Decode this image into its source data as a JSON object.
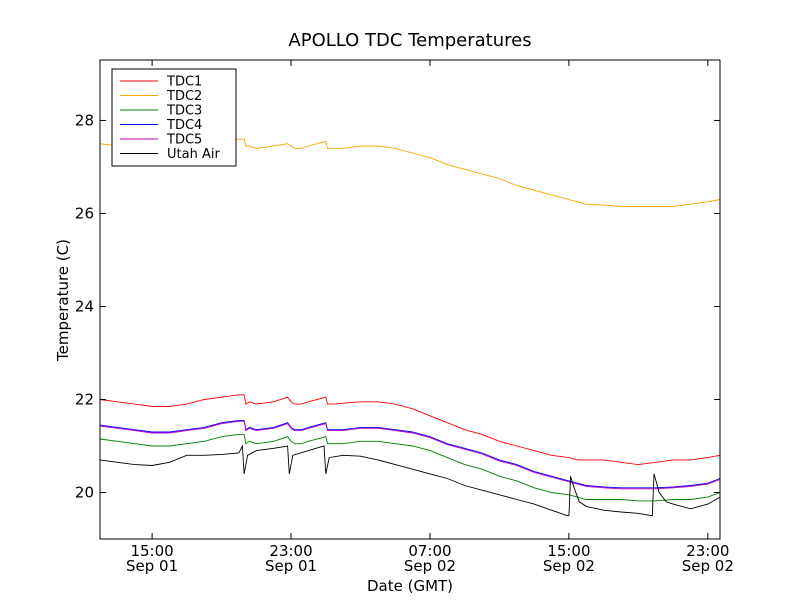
{
  "chart_data": {
    "type": "line",
    "title": "APOLLO TDC Temperatures",
    "xlabel": "Date (GMT)",
    "ylabel": "Temperature (C)",
    "xlim": [
      12,
      47.7
    ],
    "ylim": [
      19.0,
      29.3
    ],
    "x_units": "hours since 2011-09-01 00:00 GMT",
    "legend_position": "upper-left",
    "x_ticks": [
      {
        "value": 15,
        "time": "15:00",
        "date": "Sep 01"
      },
      {
        "value": 23,
        "time": "23:00",
        "date": "Sep 01"
      },
      {
        "value": 31,
        "time": "07:00",
        "date": "Sep 02"
      },
      {
        "value": 39,
        "time": "15:00",
        "date": "Sep 02"
      },
      {
        "value": 47,
        "time": "23:00",
        "date": "Sep 02"
      }
    ],
    "y_ticks": [
      {
        "value": 20,
        "label": "20"
      },
      {
        "value": 22,
        "label": "22"
      },
      {
        "value": 24,
        "label": "24"
      },
      {
        "value": 26,
        "label": "26"
      },
      {
        "value": 28,
        "label": "28"
      }
    ],
    "series": [
      {
        "name": "TDC1",
        "color": "#ff0000",
        "points": [
          [
            12,
            22.0
          ],
          [
            13,
            21.95
          ],
          [
            14,
            21.9
          ],
          [
            15,
            21.85
          ],
          [
            16,
            21.85
          ],
          [
            17,
            21.9
          ],
          [
            18,
            22.0
          ],
          [
            19,
            22.05
          ],
          [
            20,
            22.1
          ],
          [
            20.3,
            22.1
          ],
          [
            20.4,
            21.9
          ],
          [
            20.6,
            21.95
          ],
          [
            21,
            21.9
          ],
          [
            22,
            21.95
          ],
          [
            22.8,
            22.05
          ],
          [
            23,
            21.95
          ],
          [
            23.2,
            21.9
          ],
          [
            23.6,
            21.9
          ],
          [
            24,
            21.95
          ],
          [
            25,
            22.05
          ],
          [
            25.1,
            21.9
          ],
          [
            25.5,
            21.9
          ],
          [
            26,
            21.92
          ],
          [
            27,
            21.95
          ],
          [
            28,
            21.95
          ],
          [
            29,
            21.9
          ],
          [
            30,
            21.8
          ],
          [
            31,
            21.65
          ],
          [
            32,
            21.5
          ],
          [
            33,
            21.35
          ],
          [
            34,
            21.25
          ],
          [
            35,
            21.1
          ],
          [
            36,
            21.0
          ],
          [
            37,
            20.9
          ],
          [
            38,
            20.8
          ],
          [
            39,
            20.75
          ],
          [
            39.5,
            20.7
          ],
          [
            40,
            20.7
          ],
          [
            41,
            20.7
          ],
          [
            42,
            20.65
          ],
          [
            43,
            20.6
          ],
          [
            44,
            20.65
          ],
          [
            45,
            20.7
          ],
          [
            46,
            20.7
          ],
          [
            47,
            20.75
          ],
          [
            47.7,
            20.8
          ]
        ]
      },
      {
        "name": "TDC2",
        "color": "#ffa500",
        "points": [
          [
            12,
            27.5
          ],
          [
            13,
            27.45
          ],
          [
            14,
            27.4
          ],
          [
            15,
            27.35
          ],
          [
            16,
            27.35
          ],
          [
            17,
            27.4
          ],
          [
            18,
            27.45
          ],
          [
            19,
            27.55
          ],
          [
            20,
            27.6
          ],
          [
            20.3,
            27.6
          ],
          [
            20.4,
            27.45
          ],
          [
            20.6,
            27.45
          ],
          [
            21,
            27.4
          ],
          [
            22,
            27.45
          ],
          [
            22.8,
            27.5
          ],
          [
            23,
            27.45
          ],
          [
            23.2,
            27.4
          ],
          [
            23.6,
            27.4
          ],
          [
            24,
            27.45
          ],
          [
            25,
            27.55
          ],
          [
            25.1,
            27.4
          ],
          [
            25.5,
            27.4
          ],
          [
            26,
            27.4
          ],
          [
            27,
            27.45
          ],
          [
            28,
            27.45
          ],
          [
            29,
            27.4
          ],
          [
            30,
            27.3
          ],
          [
            31,
            27.2
          ],
          [
            32,
            27.05
          ],
          [
            33,
            26.95
          ],
          [
            34,
            26.85
          ],
          [
            35,
            26.75
          ],
          [
            36,
            26.6
          ],
          [
            37,
            26.5
          ],
          [
            38,
            26.4
          ],
          [
            39,
            26.3
          ],
          [
            39.5,
            26.25
          ],
          [
            40,
            26.2
          ],
          [
            41,
            26.18
          ],
          [
            42,
            26.15
          ],
          [
            43,
            26.15
          ],
          [
            44,
            26.15
          ],
          [
            45,
            26.15
          ],
          [
            46,
            26.2
          ],
          [
            47,
            26.25
          ],
          [
            47.7,
            26.3
          ]
        ]
      },
      {
        "name": "TDC3",
        "color": "#008000",
        "points": [
          [
            12,
            21.15
          ],
          [
            13,
            21.1
          ],
          [
            14,
            21.05
          ],
          [
            15,
            21.0
          ],
          [
            16,
            21.0
          ],
          [
            17,
            21.05
          ],
          [
            18,
            21.1
          ],
          [
            19,
            21.2
          ],
          [
            20,
            21.25
          ],
          [
            20.3,
            21.25
          ],
          [
            20.4,
            21.05
          ],
          [
            20.6,
            21.1
          ],
          [
            21,
            21.05
          ],
          [
            22,
            21.1
          ],
          [
            22.8,
            21.2
          ],
          [
            23,
            21.1
          ],
          [
            23.2,
            21.05
          ],
          [
            23.6,
            21.05
          ],
          [
            24,
            21.1
          ],
          [
            25,
            21.2
          ],
          [
            25.1,
            21.05
          ],
          [
            25.5,
            21.05
          ],
          [
            26,
            21.05
          ],
          [
            27,
            21.1
          ],
          [
            28,
            21.1
          ],
          [
            29,
            21.05
          ],
          [
            30,
            21.0
          ],
          [
            31,
            20.9
          ],
          [
            32,
            20.75
          ],
          [
            33,
            20.6
          ],
          [
            34,
            20.5
          ],
          [
            35,
            20.35
          ],
          [
            36,
            20.25
          ],
          [
            37,
            20.1
          ],
          [
            38,
            20.0
          ],
          [
            39,
            19.95
          ],
          [
            39.5,
            19.9
          ],
          [
            40,
            19.85
          ],
          [
            41,
            19.85
          ],
          [
            42,
            19.85
          ],
          [
            43,
            19.82
          ],
          [
            44,
            19.82
          ],
          [
            45,
            19.85
          ],
          [
            46,
            19.85
          ],
          [
            47,
            19.9
          ],
          [
            47.7,
            20.0
          ]
        ]
      },
      {
        "name": "TDC4",
        "color": "#0000ff",
        "points": [
          [
            12,
            21.45
          ],
          [
            13,
            21.4
          ],
          [
            14,
            21.35
          ],
          [
            15,
            21.3
          ],
          [
            16,
            21.3
          ],
          [
            17,
            21.35
          ],
          [
            18,
            21.4
          ],
          [
            19,
            21.5
          ],
          [
            20,
            21.55
          ],
          [
            20.3,
            21.55
          ],
          [
            20.4,
            21.35
          ],
          [
            20.6,
            21.4
          ],
          [
            21,
            21.35
          ],
          [
            22,
            21.4
          ],
          [
            22.8,
            21.5
          ],
          [
            23,
            21.4
          ],
          [
            23.2,
            21.35
          ],
          [
            23.6,
            21.35
          ],
          [
            24,
            21.4
          ],
          [
            25,
            21.5
          ],
          [
            25.1,
            21.35
          ],
          [
            25.5,
            21.35
          ],
          [
            26,
            21.35
          ],
          [
            27,
            21.4
          ],
          [
            28,
            21.4
          ],
          [
            29,
            21.35
          ],
          [
            30,
            21.3
          ],
          [
            31,
            21.2
          ],
          [
            32,
            21.05
          ],
          [
            33,
            20.95
          ],
          [
            34,
            20.85
          ],
          [
            35,
            20.7
          ],
          [
            36,
            20.6
          ],
          [
            37,
            20.45
          ],
          [
            38,
            20.35
          ],
          [
            39,
            20.25
          ],
          [
            39.5,
            20.2
          ],
          [
            40,
            20.15
          ],
          [
            41,
            20.12
          ],
          [
            42,
            20.1
          ],
          [
            43,
            20.1
          ],
          [
            44,
            20.1
          ],
          [
            45,
            20.12
          ],
          [
            46,
            20.15
          ],
          [
            47,
            20.2
          ],
          [
            47.7,
            20.3
          ]
        ]
      },
      {
        "name": "TDC5",
        "color": "#bf00bf",
        "points": [
          [
            12,
            21.43
          ],
          [
            13,
            21.38
          ],
          [
            14,
            21.33
          ],
          [
            15,
            21.28
          ],
          [
            16,
            21.28
          ],
          [
            17,
            21.33
          ],
          [
            18,
            21.38
          ],
          [
            19,
            21.48
          ],
          [
            20,
            21.53
          ],
          [
            20.3,
            21.53
          ],
          [
            20.4,
            21.33
          ],
          [
            20.6,
            21.38
          ],
          [
            21,
            21.33
          ],
          [
            22,
            21.38
          ],
          [
            22.8,
            21.48
          ],
          [
            23,
            21.38
          ],
          [
            23.2,
            21.33
          ],
          [
            23.6,
            21.33
          ],
          [
            24,
            21.38
          ],
          [
            25,
            21.48
          ],
          [
            25.1,
            21.33
          ],
          [
            25.5,
            21.33
          ],
          [
            26,
            21.33
          ],
          [
            27,
            21.38
          ],
          [
            28,
            21.38
          ],
          [
            29,
            21.33
          ],
          [
            30,
            21.28
          ],
          [
            31,
            21.18
          ],
          [
            32,
            21.03
          ],
          [
            33,
            20.93
          ],
          [
            34,
            20.83
          ],
          [
            35,
            20.68
          ],
          [
            36,
            20.58
          ],
          [
            37,
            20.43
          ],
          [
            38,
            20.33
          ],
          [
            39,
            20.23
          ],
          [
            39.5,
            20.18
          ],
          [
            40,
            20.13
          ],
          [
            41,
            20.1
          ],
          [
            42,
            20.08
          ],
          [
            43,
            20.08
          ],
          [
            44,
            20.08
          ],
          [
            45,
            20.1
          ],
          [
            46,
            20.13
          ],
          [
            47,
            20.18
          ],
          [
            47.7,
            20.28
          ]
        ]
      },
      {
        "name": "Utah Air",
        "color": "#000000",
        "points": [
          [
            12,
            20.7
          ],
          [
            13,
            20.65
          ],
          [
            14,
            20.6
          ],
          [
            15,
            20.58
          ],
          [
            16,
            20.65
          ],
          [
            17,
            20.8
          ],
          [
            18,
            20.8
          ],
          [
            19,
            20.82
          ],
          [
            20,
            20.85
          ],
          [
            20.2,
            21.0
          ],
          [
            20.3,
            20.4
          ],
          [
            20.5,
            20.8
          ],
          [
            21,
            20.9
          ],
          [
            22,
            20.95
          ],
          [
            22.8,
            21.0
          ],
          [
            22.9,
            20.4
          ],
          [
            23.1,
            20.8
          ],
          [
            24,
            20.9
          ],
          [
            24.9,
            21.0
          ],
          [
            25.0,
            20.4
          ],
          [
            25.2,
            20.75
          ],
          [
            26,
            20.8
          ],
          [
            27,
            20.78
          ],
          [
            28,
            20.7
          ],
          [
            29,
            20.6
          ],
          [
            30,
            20.5
          ],
          [
            31,
            20.4
          ],
          [
            32,
            20.3
          ],
          [
            33,
            20.15
          ],
          [
            34,
            20.05
          ],
          [
            35,
            19.95
          ],
          [
            36,
            19.85
          ],
          [
            37,
            19.75
          ],
          [
            38,
            19.62
          ],
          [
            38.9,
            19.5
          ],
          [
            39.0,
            19.5
          ],
          [
            39.1,
            20.35
          ],
          [
            39.3,
            20.1
          ],
          [
            39.6,
            19.8
          ],
          [
            40,
            19.7
          ],
          [
            41,
            19.62
          ],
          [
            42,
            19.58
          ],
          [
            43,
            19.55
          ],
          [
            43.8,
            19.5
          ],
          [
            43.9,
            20.4
          ],
          [
            44.2,
            20.0
          ],
          [
            44.6,
            19.8
          ],
          [
            45,
            19.75
          ],
          [
            46,
            19.65
          ],
          [
            47,
            19.75
          ],
          [
            47.7,
            19.9
          ]
        ]
      }
    ]
  }
}
